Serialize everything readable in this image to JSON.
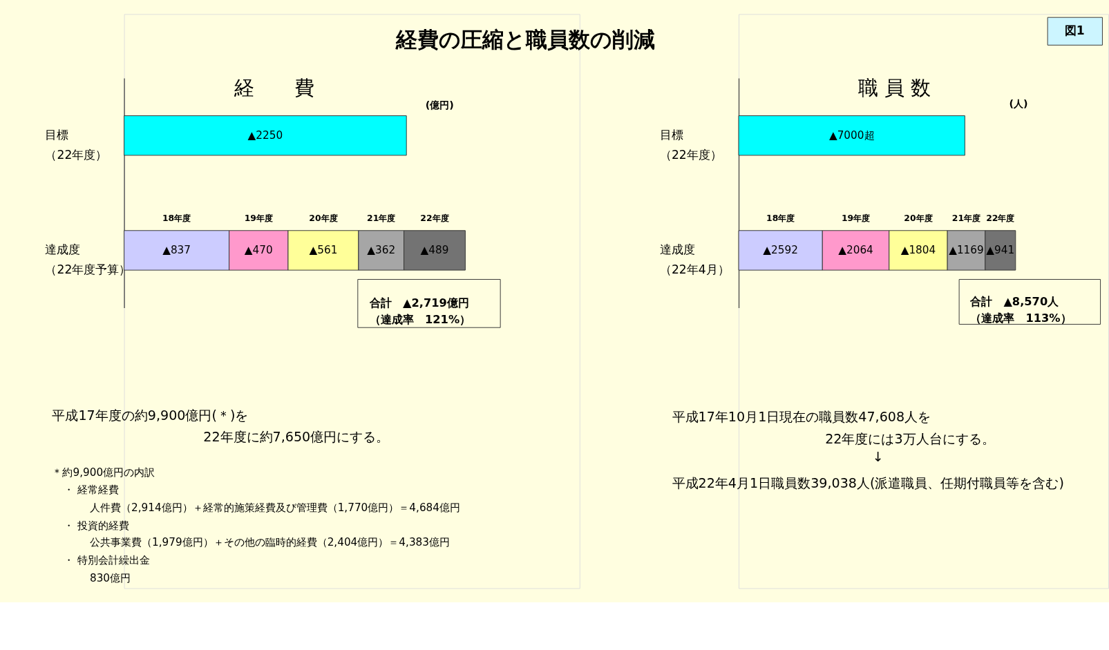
{
  "chart_data": [
    {
      "type": "bar",
      "orientation": "horizontal",
      "stacked": true,
      "tick_labels": "y",
      "title": "経　　費",
      "categories": [
        "目標（22年度）",
        "達成度（22年度予算）"
      ],
      "series": [
        {
          "color": "#00ffff",
          "values": [
            2250,
            null
          ],
          "value_labels": [
            "▲2250",
            null
          ]
        },
        {
          "name": "18年度",
          "color": "#ccccff",
          "values": [
            null,
            837
          ],
          "value_labels": [
            null,
            "▲837"
          ]
        },
        {
          "name": "19年度",
          "color": "#ff99cc",
          "values": [
            null,
            470
          ],
          "value_labels": [
            null,
            "▲470"
          ]
        },
        {
          "name": "20年度",
          "color": "#ffff99",
          "values": [
            null,
            561
          ],
          "value_labels": [
            null,
            "▲561"
          ]
        },
        {
          "name": "21年度",
          "color": "#a6a6a6",
          "values": [
            null,
            362
          ],
          "value_labels": [
            null,
            "▲362"
          ]
        },
        {
          "name": "22年度",
          "color": "#737373",
          "values": [
            null,
            489
          ],
          "value_labels": [
            null,
            "▲489"
          ]
        }
      ],
      "annotations": [
        "経費の圧縮と職員数の削減",
        "(億円)",
        "合計　▲2,719億円（達成率　121%）",
        "平成17年度の約9,900億円(＊)を",
        "22年度に約7,650億円にする。",
        "＊約9,900億円の内訳",
        "・ 経常経費",
        "人件費（2,914億円）＋経常的施策経費及び管理費（1,770億円）＝4,684億円",
        "・ 投資的経費",
        "公共事業費（1,979億円）＋その他の臨時的経費（2,404億円）＝4,383億円",
        "・ 特別会計繰出金",
        "830億円"
      ]
    },
    {
      "type": "bar",
      "orientation": "horizontal",
      "stacked": true,
      "tick_labels": "y",
      "title": "職 員 数",
      "categories": [
        "目標（22年度）",
        "達成度（22年4月）"
      ],
      "series": [
        {
          "color": "#00ffff",
          "values": [
            7000,
            null
          ],
          "value_labels": [
            "▲7000超",
            null
          ]
        },
        {
          "name": "18年度",
          "color": "#ccccff",
          "values": [
            null,
            2592
          ],
          "value_labels": [
            null,
            "▲2592"
          ]
        },
        {
          "name": "19年度",
          "color": "#ff99cc",
          "values": [
            null,
            2064
          ],
          "value_labels": [
            null,
            "▲2064"
          ]
        },
        {
          "name": "20年度",
          "color": "#ffff99",
          "values": [
            null,
            1804
          ],
          "value_labels": [
            null,
            "▲1804"
          ]
        },
        {
          "name": "21年度",
          "color": "#a6a6a6",
          "values": [
            null,
            1169
          ],
          "value_labels": [
            null,
            "▲1169"
          ]
        },
        {
          "name": "22年度",
          "color": "#737373",
          "values": [
            null,
            941
          ],
          "value_labels": [
            null,
            "▲941"
          ]
        }
      ],
      "annotations": [
        "図1",
        "(人)",
        "合計　▲8,570人（達成率　113%）",
        "平成17年10月1日現在の職員数47,608人を",
        "22年度には3万人台にする。",
        "↓",
        "平成22年4月1日職員数39,038人(派遣職員、任期付職員等を含む)"
      ]
    }
  ]
}
